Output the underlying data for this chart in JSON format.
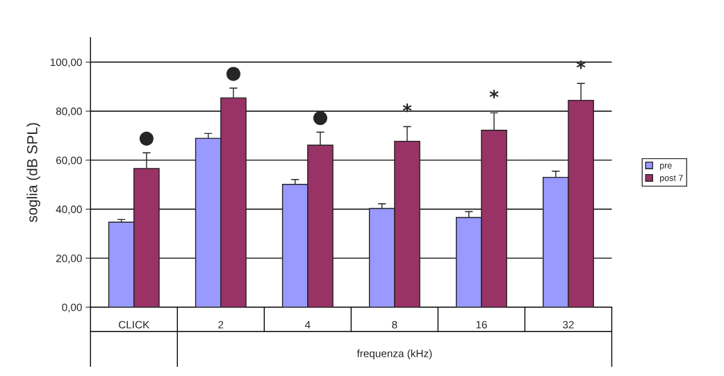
{
  "chart_data": {
    "type": "bar",
    "categories": [
      "CLICK",
      "2",
      "4",
      "8",
      "16",
      "32"
    ],
    "series": [
      {
        "name": "pre",
        "color": "#9999ff",
        "values": [
          34.7,
          68.9,
          50.1,
          40.3,
          36.6,
          53.0
        ],
        "errors": [
          [
            34.7,
            35.8
          ],
          [
            68.9,
            70.9
          ],
          [
            50.1,
            52.1
          ],
          [
            40.3,
            42.2
          ],
          [
            36.6,
            39.0
          ],
          [
            53.0,
            55.5
          ]
        ]
      },
      {
        "name": "post 7",
        "color": "#993366",
        "values": [
          56.6,
          85.4,
          66.1,
          67.7,
          72.2,
          84.4
        ],
        "errors": [
          [
            56.6,
            63.0
          ],
          [
            85.4,
            89.4
          ],
          [
            66.1,
            71.4
          ],
          [
            67.7,
            73.7
          ],
          [
            72.2,
            79.3
          ],
          [
            84.4,
            91.3
          ]
        ]
      }
    ],
    "xlabel": "frequenza (kHz)",
    "ylabel": "soglia (dB SPL)",
    "ylim": [
      0,
      110
    ],
    "yticks": [
      {
        "value": 0,
        "label": "0,00"
      },
      {
        "value": 20,
        "label": "20,00"
      },
      {
        "value": 40,
        "label": "40,00"
      },
      {
        "value": 60,
        "label": "60,00"
      },
      {
        "value": 80,
        "label": "80,00"
      },
      {
        "value": 100,
        "label": "100,00"
      }
    ],
    "grid": "y",
    "legend": "right",
    "annotations": [
      "●",
      "●",
      "●",
      "*",
      "*",
      "*"
    ]
  }
}
